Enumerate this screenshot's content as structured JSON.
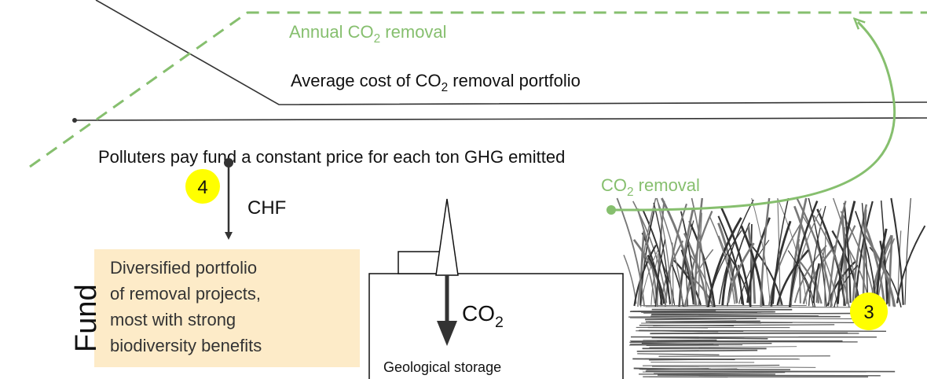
{
  "labels": {
    "annual_removal": {
      "pre": "Annual CO",
      "sub": "2",
      "post": " removal"
    },
    "average_cost": {
      "pre": "Average cost of CO",
      "sub": "2",
      "post": " removal portfolio"
    },
    "polluters": "Polluters pay fund a constant price for each ton GHG emitted",
    "badge_4": "4",
    "chf": "CHF",
    "fund": "Fund",
    "portfolio": [
      "Diversified portfolio",
      "of removal projects,",
      "most with strong",
      "biodiversity benefits"
    ],
    "co2_arrow": {
      "pre": "CO",
      "sub": "2"
    },
    "geological": "Geological storage",
    "removal": {
      "pre": "CO",
      "sub": "2",
      "post": " removal"
    },
    "badge_3": "3"
  }
}
